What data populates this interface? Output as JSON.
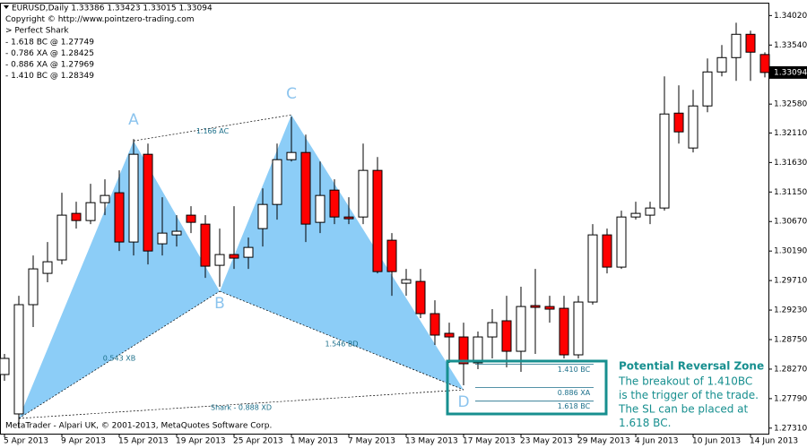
{
  "chart_data": {
    "type": "candlestick",
    "header": [
      "EURUSD,Daily  1.33386 1.33423 1.33015 1.33094",
      "Copyright © http://www.pointzero-trading.com",
      "> Perfect Shark",
      "- 1.618 BC @ 1.27749",
      "- 0.786 XA @ 1.28425",
      "- 0.886 XA @ 1.27969",
      "- 1.410 BC @ 1.28349"
    ],
    "footer": "MetaTrader - Alpari UK, © 2001-2013, MetaQuotes Software Corp.",
    "categories": [
      "5 Apr 2013",
      null,
      null,
      null,
      "9 Apr 2013",
      null,
      null,
      null,
      "15 Apr 2013",
      null,
      null,
      null,
      "19 Apr 2013",
      null,
      null,
      null,
      "25 Apr 2013",
      null,
      null,
      null,
      "1 May 2013",
      null,
      null,
      null,
      "7 May 2013",
      null,
      null,
      null,
      "13 May 2013",
      null,
      null,
      null,
      "17 May 2013",
      null,
      null,
      null,
      "23 May 2013",
      null,
      null,
      null,
      "29 May 2013",
      null,
      null,
      null,
      "4 Jun 2013",
      null,
      null,
      null,
      "10 Jun 2013",
      null,
      null,
      null,
      "14 Jun 2013",
      null
    ],
    "open": [
      1.28182,
      1.27541,
      1.29318,
      1.29827,
      1.30046,
      1.30803,
      1.30686,
      1.30977,
      1.31138,
      1.30337,
      1.31764,
      1.30308,
      1.30453,
      1.30774,
      1.30628,
      1.29958,
      1.30133,
      1.30089,
      1.30555,
      1.30948,
      1.31676,
      1.31793,
      1.30657,
      1.31181,
      1.30744,
      1.30744,
      1.31502,
      1.30366,
      1.29667,
      1.29696,
      1.29172,
      1.28852,
      1.28793,
      1.28371,
      1.28793,
      1.29056,
      1.2856,
      1.29303,
      1.29288,
      1.29259,
      1.28502,
      1.29361,
      1.30453,
      1.29929,
      1.30744,
      1.30774,
      1.3089,
      1.32433,
      1.31866,
      1.3255,
      1.33103,
      1.33336,
      1.33715,
      1.33386
    ],
    "high": [
      1.28517,
      1.29463,
      1.30118,
      1.30337,
      1.31138,
      1.30992,
      1.31283,
      1.31356,
      1.31502,
      1.32011,
      1.31938,
      1.31065,
      1.30774,
      1.30919,
      1.30774,
      1.30555,
      1.30919,
      1.3041,
      1.3121,
      1.31938,
      1.32375,
      1.32084,
      1.31647,
      1.31356,
      1.31065,
      1.31938,
      1.3172,
      1.30482,
      1.299,
      1.299,
      1.2939,
      1.29026,
      1.29026,
      1.28881,
      1.29245,
      1.29463,
      1.29609,
      1.299,
      1.29463,
      1.29463,
      1.29463,
      1.30628,
      1.30555,
      1.30846,
      1.30992,
      1.30992,
      1.3303,
      1.32885,
      1.32812,
      1.33322,
      1.3354,
      1.33904,
      1.33773,
      1.33423
    ],
    "low": [
      1.2808,
      1.27308,
      1.28954,
      1.29682,
      1.29973,
      1.30555,
      1.30628,
      1.30774,
      1.30191,
      1.30118,
      1.29973,
      1.30118,
      1.30264,
      1.30482,
      1.29754,
      1.29609,
      1.299,
      1.299,
      1.30264,
      1.30701,
      1.31647,
      1.30337,
      1.30482,
      1.30628,
      1.30628,
      1.30628,
      1.29827,
      1.29463,
      1.29463,
      1.29099,
      1.28662,
      1.28371,
      1.28007,
      1.28269,
      1.28444,
      1.28298,
      1.28226,
      1.28517,
      1.29026,
      1.28444,
      1.28444,
      1.29318,
      1.29827,
      1.299,
      1.30701,
      1.30628,
      1.30846,
      1.31938,
      1.31793,
      1.32448,
      1.3303,
      1.32958,
      1.32958,
      1.33015
    ],
    "close": [
      1.28444,
      1.29318,
      1.299,
      1.30016,
      1.30774,
      1.30686,
      1.30977,
      1.31094,
      1.30337,
      1.31764,
      1.30191,
      1.30482,
      1.30512,
      1.30657,
      1.29944,
      1.30133,
      1.30075,
      1.30249,
      1.30948,
      1.31676,
      1.31793,
      1.30628,
      1.31094,
      1.30744,
      1.30715,
      1.31502,
      1.29856,
      1.29856,
      1.29725,
      1.29172,
      1.28823,
      1.28793,
      1.28357,
      1.28793,
      1.29026,
      1.2856,
      1.29288,
      1.29274,
      1.29245,
      1.28502,
      1.29361,
      1.30453,
      1.29929,
      1.30744,
      1.30803,
      1.3089,
      1.32419,
      1.32128,
      1.3255,
      1.33103,
      1.33336,
      1.33715,
      1.33424,
      1.33094
    ],
    "up_color": "#ffffff",
    "down_color": "#ff0000",
    "ylim": [
      1.2722,
      1.342
    ],
    "yticks": [
      {
        "value": 1.3402,
        "label": "1.34020"
      },
      {
        "value": 1.3354,
        "label": "1.33540"
      },
      {
        "value": 1.3258,
        "label": "1.32580"
      },
      {
        "value": 1.3211,
        "label": "1.32110"
      },
      {
        "value": 1.3163,
        "label": "1.31630"
      },
      {
        "value": 1.3115,
        "label": "1.31150"
      },
      {
        "value": 1.3067,
        "label": "1.30670"
      },
      {
        "value": 1.3019,
        "label": "1.30190"
      },
      {
        "value": 1.2971,
        "label": "1.29710"
      },
      {
        "value": 1.2923,
        "label": "1.29230"
      },
      {
        "value": 1.2875,
        "label": "1.28750"
      },
      {
        "value": 1.2827,
        "label": "1.28270"
      },
      {
        "value": 1.2779,
        "label": "1.27790"
      },
      {
        "value": 1.2731,
        "label": "1.27310"
      }
    ],
    "current_price": 1.33094,
    "pattern": {
      "color": "#8ccdf7",
      "label_color": "#8cc4ee",
      "points": [
        {
          "index": 1,
          "price": 1.27468
        },
        {
          "label": "A",
          "index": 9,
          "price": 1.31982
        },
        {
          "label": "B",
          "index": 15,
          "price": 1.29536
        },
        {
          "label": "C",
          "index": 20,
          "price": 1.32404
        },
        {
          "label": "D",
          "index": 32,
          "price": 1.27934
        }
      ],
      "annotations": [
        "1.166 AC",
        "0.543 XB",
        "1.546 BD",
        "Shark - 0.888 XD"
      ]
    },
    "prz": {
      "title": "Potential Reversal Zone",
      "color": "#178f8f",
      "text": [
        "The breakout of 1.410BC",
        "is the trigger of the trade.",
        "The SL can be placed at",
        "1.618 BC."
      ],
      "levels": [
        {
          "label": "1.410 BC",
          "value": 1.28349
        },
        {
          "label": "0.886 XA",
          "value": 1.27969
        },
        {
          "label": "1.618 BC",
          "value": 1.27749
        }
      ]
    }
  }
}
